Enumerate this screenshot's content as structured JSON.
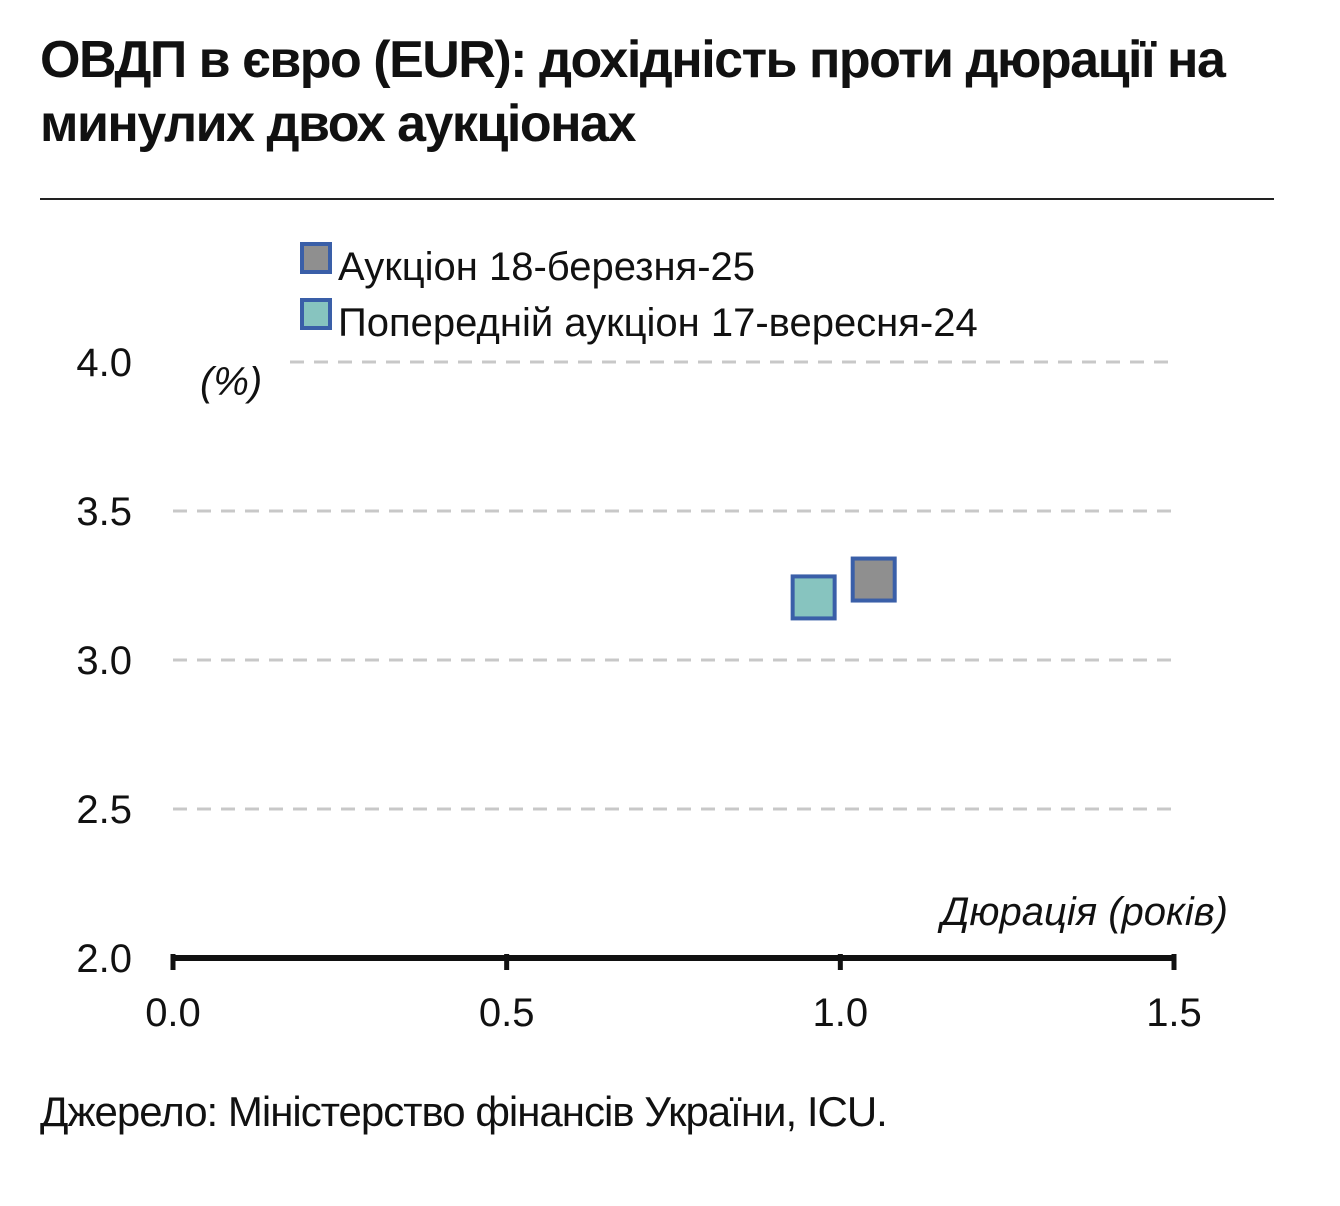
{
  "title": "ОВДП в євро (EUR): дохідність проти дюрації на минулих двох аукціонах",
  "source": "Джерело: Міністерство фінансів України, ICU.",
  "chart_data": {
    "type": "scatter",
    "xlabel": "Дюрація (років)",
    "ylabel": "(%)",
    "xlim": [
      0.0,
      1.5
    ],
    "ylim": [
      2.0,
      4.0
    ],
    "x_ticks": [
      "0.0",
      "0.5",
      "1.0",
      "1.5"
    ],
    "y_ticks": [
      "4.0",
      "3.5",
      "3.0",
      "2.5",
      "2.0"
    ],
    "grid": "horizontal dashed",
    "legend_position": "top",
    "series": [
      {
        "name": "Аукціон 18-березня-25",
        "color": "#8f8f8f",
        "edge_color": "#3a5fa8",
        "points": [
          {
            "x": 1.05,
            "y": 3.27
          }
        ]
      },
      {
        "name": "Попередній аукціон 17-вересня-24",
        "color": "#87c4bf",
        "edge_color": "#3a5fa8",
        "points": [
          {
            "x": 0.96,
            "y": 3.21
          }
        ]
      }
    ]
  }
}
